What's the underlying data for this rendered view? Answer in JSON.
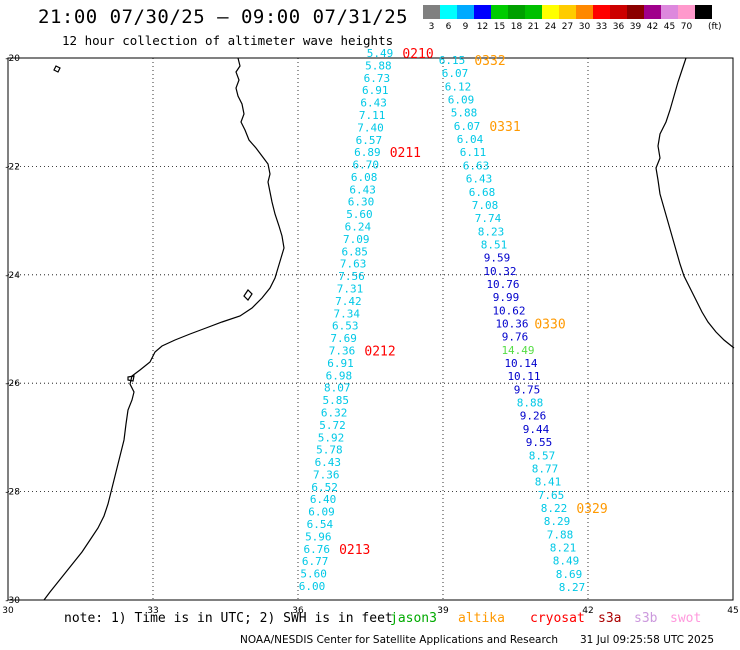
{
  "header": {
    "title": "21:00 07/30/25 – 09:00 07/31/25",
    "subtitle": "12 hour collection of altimeter wave heights"
  },
  "color_scale": {
    "unit": "(ft)",
    "bins": [
      {
        "label": "3",
        "color": "#808080"
      },
      {
        "label": "6",
        "color": "#00ffff"
      },
      {
        "label": "9",
        "color": "#00aaff"
      },
      {
        "label": "12",
        "color": "#0000ff"
      },
      {
        "label": "15",
        "color": "#00cc00"
      },
      {
        "label": "18",
        "color": "#00a000"
      },
      {
        "label": "21",
        "color": "#00c000"
      },
      {
        "label": "24",
        "color": "#ffff00"
      },
      {
        "label": "27",
        "color": "#ffcc00"
      },
      {
        "label": "30",
        "color": "#ff8800"
      },
      {
        "label": "33",
        "color": "#ff0000"
      },
      {
        "label": "36",
        "color": "#cc0000"
      },
      {
        "label": "39",
        "color": "#8b0000"
      },
      {
        "label": "42",
        "color": "#a0008b"
      },
      {
        "label": "45",
        "color": "#dd88dd"
      },
      {
        "label": "70",
        "color": "#ff99cc"
      },
      {
        "label": "",
        "color": "#000000"
      }
    ]
  },
  "map": {
    "lon_range": [
      30,
      45
    ],
    "lat_range": [
      -30,
      -20
    ],
    "lon_ticks": [
      "30",
      "33",
      "36",
      "39",
      "42",
      "45"
    ],
    "lat_ticks": [
      "-20",
      "-22",
      "-24",
      "-26",
      "-28",
      "-30"
    ],
    "track_colors": {
      "low": "#00c8e6",
      "mid": "#0000cc",
      "high": "#55dd44",
      "time_red": "#ff0000",
      "time_orange": "#ff9900"
    },
    "tracks": [
      {
        "values": [
          "5.49",
          "5.88",
          "6.73",
          "6.91",
          "6.43",
          "7.11",
          "7.40",
          "6.57",
          "6.89",
          "6.70",
          "6.08",
          "6.43",
          "6.30",
          "5.60",
          "6.24",
          "7.09",
          "6.85",
          "7.63",
          "7.56",
          "7.31",
          "7.42",
          "7.34",
          "6.53",
          "7.69",
          "7.36",
          "6.91",
          "6.98",
          "8.07",
          "5.85",
          "6.32",
          "5.72",
          "5.92",
          "5.78",
          "6.43",
          "7.36",
          "6.52",
          "6.40",
          "6.09",
          "6.54",
          "5.96",
          "6.76",
          "6.77",
          "5.60",
          "6.00"
        ],
        "levels": [
          "low",
          "low",
          "low",
          "low",
          "low",
          "low",
          "low",
          "low",
          "low",
          "low",
          "low",
          "low",
          "low",
          "low",
          "low",
          "low",
          "low",
          "low",
          "low",
          "low",
          "low",
          "low",
          "low",
          "low",
          "low",
          "low",
          "low",
          "low",
          "low",
          "low",
          "low",
          "low",
          "low",
          "low",
          "low",
          "low",
          "low",
          "low",
          "low",
          "low",
          "low",
          "low",
          "low",
          "low"
        ],
        "times": [
          {
            "label": "0210",
            "index": 0,
            "color": "time_red"
          },
          {
            "label": "0211",
            "index": 8,
            "color": "time_red"
          },
          {
            "label": "0212",
            "index": 24,
            "color": "time_red"
          },
          {
            "label": "0213",
            "index": 40,
            "color": "time_red"
          }
        ]
      },
      {
        "values": [
          "6.15",
          "6.07",
          "6.12",
          "6.09",
          "5.88",
          "6.07",
          "6.04",
          "6.11",
          "6.63",
          "6.43",
          "6.68",
          "7.08",
          "7.74",
          "8.23",
          "8.51",
          "9.59",
          "10.32",
          "10.76",
          "9.99",
          "10.62",
          "10.36",
          "9.76",
          "14.49",
          "10.14",
          "10.11",
          "9.75",
          "8.88",
          "9.26",
          "9.44",
          "9.55",
          "8.57",
          "8.77",
          "8.41",
          "7.65",
          "8.22",
          "8.29",
          "7.88",
          "8.21",
          "8.49",
          "8.69",
          "8.27"
        ],
        "levels": [
          "low",
          "low",
          "low",
          "low",
          "low",
          "low",
          "low",
          "low",
          "low",
          "low",
          "low",
          "low",
          "low",
          "low",
          "low",
          "mid",
          "mid",
          "mid",
          "mid",
          "mid",
          "mid",
          "mid",
          "high",
          "mid",
          "mid",
          "mid",
          "low",
          "mid",
          "mid",
          "mid",
          "low",
          "low",
          "low",
          "low",
          "low",
          "low",
          "low",
          "low",
          "low",
          "low",
          "low"
        ],
        "times": [
          {
            "label": "0332",
            "index": 0,
            "color": "time_orange"
          },
          {
            "label": "0331",
            "index": 5,
            "color": "time_orange"
          },
          {
            "label": "0330",
            "index": 20,
            "color": "time_orange"
          },
          {
            "label": "0329",
            "index": 34,
            "color": "time_orange"
          }
        ]
      }
    ]
  },
  "footer": {
    "note": "note: 1) Time is in UTC; 2) SWH is in feet",
    "satellites": [
      {
        "name": "jason3",
        "color": "#00aa00"
      },
      {
        "name": "altika",
        "color": "#ff9900"
      },
      {
        "name": "cryosat",
        "color": "#ff0000"
      },
      {
        "name": "s3a",
        "color": "#aa0000"
      },
      {
        "name": "s3b",
        "color": "#cc99dd"
      },
      {
        "name": "swot",
        "color": "#ff99dd"
      }
    ],
    "credit": "NOAA/NESDIS Center for Satellite Applications and Research",
    "timestamp": "31 Jul 09:25:58 UTC 2025"
  }
}
